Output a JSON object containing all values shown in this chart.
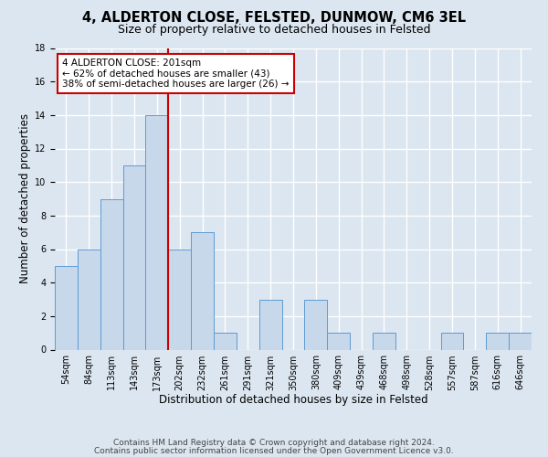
{
  "title": "4, ALDERTON CLOSE, FELSTED, DUNMOW, CM6 3EL",
  "subtitle": "Size of property relative to detached houses in Felsted",
  "xlabel": "Distribution of detached houses by size in Felsted",
  "ylabel": "Number of detached properties",
  "bin_labels": [
    "54sqm",
    "84sqm",
    "113sqm",
    "143sqm",
    "173sqm",
    "202sqm",
    "232sqm",
    "261sqm",
    "291sqm",
    "321sqm",
    "350sqm",
    "380sqm",
    "409sqm",
    "439sqm",
    "468sqm",
    "498sqm",
    "528sqm",
    "557sqm",
    "587sqm",
    "616sqm",
    "646sqm"
  ],
  "bar_values": [
    5,
    6,
    9,
    11,
    14,
    6,
    7,
    1,
    0,
    3,
    0,
    3,
    1,
    0,
    1,
    0,
    0,
    1,
    0,
    1,
    1
  ],
  "bar_color": "#c8d8eb",
  "bar_edge_color": "#5b9bd5",
  "vline_color": "#cc0000",
  "ylim": [
    0,
    18
  ],
  "yticks": [
    0,
    2,
    4,
    6,
    8,
    10,
    12,
    14,
    16,
    18
  ],
  "annotation_title": "4 ALDERTON CLOSE: 201sqm",
  "annotation_line1": "← 62% of detached houses are smaller (43)",
  "annotation_line2": "38% of semi-detached houses are larger (26) →",
  "annotation_box_color": "#ffffff",
  "annotation_box_edge": "#cc0000",
  "footer_line1": "Contains HM Land Registry data © Crown copyright and database right 2024.",
  "footer_line2": "Contains public sector information licensed under the Open Government Licence v3.0.",
  "bg_color": "#dce6f0",
  "plot_bg_color": "#dce6f0",
  "grid_color": "#ffffff",
  "title_fontsize": 10.5,
  "subtitle_fontsize": 9,
  "axis_label_fontsize": 8.5,
  "tick_fontsize": 7,
  "footer_fontsize": 6.5,
  "annotation_fontsize": 7.5
}
